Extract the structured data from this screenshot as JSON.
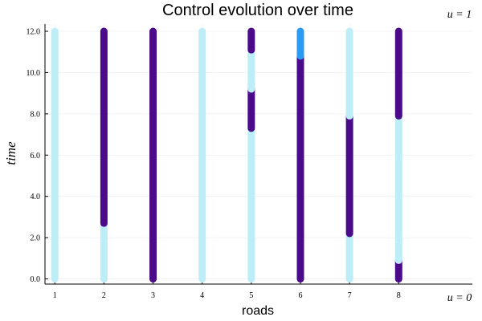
{
  "chart_data": {
    "type": "scatter",
    "title": "Control evolution over time",
    "xlabel": "roads",
    "ylabel": "time",
    "xlim": [
      0.8,
      9.5
    ],
    "ylim": [
      -0.25,
      12.35
    ],
    "x_ticks": [
      1,
      2,
      3,
      4,
      5,
      6,
      7,
      8
    ],
    "x_tick_labels": [
      "1",
      "2",
      "3",
      "4",
      "5",
      "6",
      "7",
      "8"
    ],
    "y_ticks": [
      0,
      2,
      4,
      6,
      8,
      10,
      12
    ],
    "y_tick_labels": [
      "0.0",
      "2.0",
      "4.0",
      "6.0",
      "8.0",
      "10.0",
      "12.0"
    ],
    "grid": true,
    "colorbar": {
      "min": 0,
      "max": 1,
      "min_label": "u = 0",
      "max_label": "u = 1",
      "gradient": [
        "#bdeef8",
        "#9fdcf5",
        "#2b9af2",
        "#2f6fe2",
        "#3f3fc0",
        "#4a0a8a"
      ]
    },
    "colors": {
      "u_low": "#bdeef8",
      "u_mid": "#2b9af2",
      "u_high": "#4a0a8a"
    },
    "roads": [
      {
        "road": 1,
        "segments": [
          {
            "from": 0.0,
            "to": 12.0,
            "u": 0
          }
        ]
      },
      {
        "road": 2,
        "segments": [
          {
            "from": 0.0,
            "to": 2.7,
            "u": 0
          },
          {
            "from": 2.7,
            "to": 12.0,
            "u": 1
          }
        ]
      },
      {
        "road": 3,
        "segments": [
          {
            "from": 0.0,
            "to": 12.0,
            "u": 1
          }
        ]
      },
      {
        "road": 4,
        "segments": [
          {
            "from": 0.0,
            "to": 12.0,
            "u": 0
          }
        ]
      },
      {
        "road": 5,
        "segments": [
          {
            "from": 0.0,
            "to": 7.3,
            "u": 0
          },
          {
            "from": 7.3,
            "to": 9.2,
            "u": 1
          },
          {
            "from": 9.2,
            "to": 11.1,
            "u": 0
          },
          {
            "from": 11.1,
            "to": 12.0,
            "u": 1
          }
        ]
      },
      {
        "road": 6,
        "segments": [
          {
            "from": 0.0,
            "to": 10.8,
            "u": 1
          },
          {
            "from": 10.8,
            "to": 12.0,
            "u": 0.5
          }
        ]
      },
      {
        "road": 7,
        "segments": [
          {
            "from": 0.0,
            "to": 2.2,
            "u": 0
          },
          {
            "from": 2.2,
            "to": 7.9,
            "u": 1
          },
          {
            "from": 7.9,
            "to": 12.0,
            "u": 0
          }
        ]
      },
      {
        "road": 8,
        "segments": [
          {
            "from": 0.0,
            "to": 0.9,
            "u": 1
          },
          {
            "from": 0.9,
            "to": 7.9,
            "u": 0
          },
          {
            "from": 7.9,
            "to": 12.0,
            "u": 1
          }
        ]
      }
    ]
  }
}
